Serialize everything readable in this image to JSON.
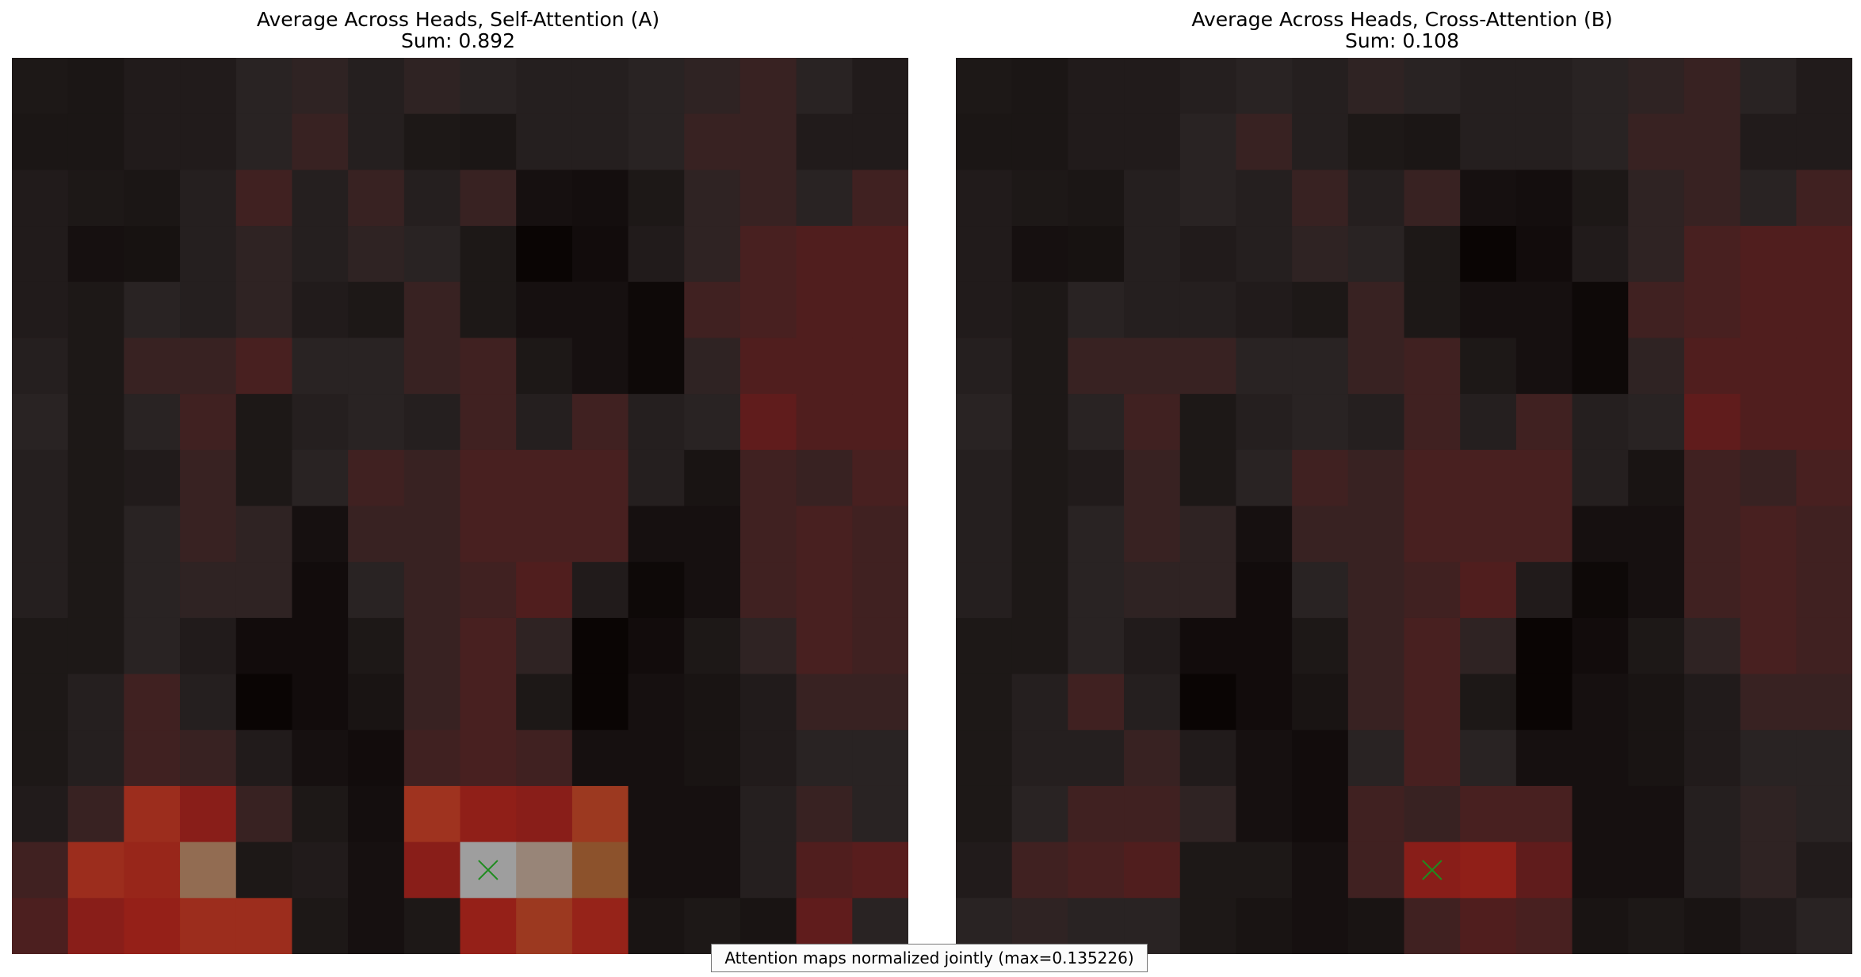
{
  "chart_data": [
    {
      "type": "heatmap",
      "title": "Average Across Heads, Self-Attention (A)",
      "subtitle": "Sum: 0.892",
      "rows": 16,
      "cols": 16,
      "values": [
        [
          0.1,
          0.09,
          0.12,
          0.12,
          0.16,
          0.18,
          0.14,
          0.18,
          0.16,
          0.14,
          0.14,
          0.16,
          0.18,
          0.2,
          0.16,
          0.12
        ],
        [
          0.09,
          0.09,
          0.12,
          0.12,
          0.16,
          0.2,
          0.14,
          0.1,
          0.09,
          0.14,
          0.14,
          0.16,
          0.2,
          0.2,
          0.12,
          0.12
        ],
        [
          0.12,
          0.1,
          0.09,
          0.14,
          0.22,
          0.14,
          0.2,
          0.14,
          0.2,
          0.06,
          0.05,
          0.1,
          0.18,
          0.2,
          0.16,
          0.22
        ],
        [
          0.12,
          0.06,
          0.07,
          0.14,
          0.18,
          0.14,
          0.18,
          0.16,
          0.1,
          0.0,
          0.04,
          0.12,
          0.18,
          0.24,
          0.26,
          0.26
        ],
        [
          0.12,
          0.1,
          0.16,
          0.14,
          0.18,
          0.12,
          0.1,
          0.2,
          0.1,
          0.06,
          0.06,
          0.02,
          0.22,
          0.24,
          0.26,
          0.26
        ],
        [
          0.14,
          0.1,
          0.2,
          0.2,
          0.24,
          0.16,
          0.16,
          0.2,
          0.22,
          0.1,
          0.06,
          0.02,
          0.18,
          0.26,
          0.26,
          0.26
        ],
        [
          0.16,
          0.1,
          0.16,
          0.22,
          0.1,
          0.14,
          0.16,
          0.14,
          0.22,
          0.14,
          0.22,
          0.14,
          0.16,
          0.3,
          0.26,
          0.26
        ],
        [
          0.14,
          0.1,
          0.12,
          0.2,
          0.1,
          0.16,
          0.22,
          0.2,
          0.24,
          0.24,
          0.24,
          0.14,
          0.08,
          0.22,
          0.2,
          0.24
        ],
        [
          0.14,
          0.1,
          0.16,
          0.2,
          0.18,
          0.06,
          0.2,
          0.2,
          0.24,
          0.24,
          0.24,
          0.06,
          0.06,
          0.22,
          0.24,
          0.22
        ],
        [
          0.14,
          0.1,
          0.16,
          0.18,
          0.18,
          0.04,
          0.16,
          0.2,
          0.22,
          0.26,
          0.12,
          0.02,
          0.06,
          0.22,
          0.24,
          0.22
        ],
        [
          0.1,
          0.1,
          0.16,
          0.12,
          0.04,
          0.04,
          0.1,
          0.2,
          0.24,
          0.18,
          0.0,
          0.04,
          0.1,
          0.18,
          0.24,
          0.22
        ],
        [
          0.1,
          0.14,
          0.22,
          0.14,
          0.0,
          0.04,
          0.08,
          0.2,
          0.24,
          0.1,
          0.0,
          0.06,
          0.08,
          0.12,
          0.2,
          0.2
        ],
        [
          0.1,
          0.14,
          0.22,
          0.2,
          0.12,
          0.06,
          0.04,
          0.22,
          0.24,
          0.22,
          0.06,
          0.06,
          0.08,
          0.12,
          0.16,
          0.16
        ],
        [
          0.12,
          0.2,
          0.6,
          0.45,
          0.2,
          0.1,
          0.05,
          0.65,
          0.48,
          0.45,
          0.7,
          0.06,
          0.06,
          0.14,
          0.2,
          0.16
        ],
        [
          0.22,
          0.6,
          0.55,
          0.9,
          0.1,
          0.12,
          0.06,
          0.45,
          1.0,
          0.95,
          0.85,
          0.06,
          0.06,
          0.14,
          0.26,
          0.28
        ],
        [
          0.25,
          0.45,
          0.5,
          0.6,
          0.6,
          0.1,
          0.06,
          0.1,
          0.5,
          0.7,
          0.52,
          0.08,
          0.1,
          0.08,
          0.3,
          0.16
        ]
      ],
      "marker": {
        "row": 14,
        "col": 8,
        "symbol": "x",
        "color": "#1f8c1f"
      },
      "colormap": [
        "#0a0504",
        "#2a2424",
        "#6e1a1a",
        "#952018",
        "#a03520",
        "#8a4a1f",
        "#9e9e9e"
      ]
    },
    {
      "type": "heatmap",
      "title": "Average Across Heads, Cross-Attention (B)",
      "subtitle": "Sum: 0.108",
      "rows": 16,
      "cols": 16,
      "values": [
        [
          0.1,
          0.09,
          0.12,
          0.12,
          0.14,
          0.16,
          0.14,
          0.18,
          0.16,
          0.14,
          0.14,
          0.16,
          0.18,
          0.2,
          0.16,
          0.12
        ],
        [
          0.09,
          0.09,
          0.12,
          0.12,
          0.16,
          0.2,
          0.14,
          0.1,
          0.09,
          0.14,
          0.14,
          0.16,
          0.2,
          0.2,
          0.12,
          0.12
        ],
        [
          0.12,
          0.1,
          0.09,
          0.14,
          0.16,
          0.14,
          0.2,
          0.14,
          0.2,
          0.06,
          0.05,
          0.1,
          0.18,
          0.2,
          0.16,
          0.22
        ],
        [
          0.12,
          0.06,
          0.07,
          0.14,
          0.12,
          0.14,
          0.18,
          0.16,
          0.1,
          0.0,
          0.04,
          0.12,
          0.18,
          0.24,
          0.26,
          0.26
        ],
        [
          0.12,
          0.1,
          0.16,
          0.14,
          0.14,
          0.12,
          0.1,
          0.2,
          0.1,
          0.06,
          0.06,
          0.02,
          0.22,
          0.24,
          0.26,
          0.26
        ],
        [
          0.14,
          0.1,
          0.2,
          0.2,
          0.2,
          0.16,
          0.16,
          0.2,
          0.22,
          0.1,
          0.06,
          0.02,
          0.18,
          0.26,
          0.26,
          0.26
        ],
        [
          0.16,
          0.1,
          0.16,
          0.22,
          0.1,
          0.14,
          0.16,
          0.14,
          0.22,
          0.14,
          0.22,
          0.14,
          0.16,
          0.3,
          0.26,
          0.26
        ],
        [
          0.14,
          0.1,
          0.12,
          0.2,
          0.1,
          0.16,
          0.22,
          0.2,
          0.24,
          0.24,
          0.24,
          0.14,
          0.08,
          0.22,
          0.2,
          0.24
        ],
        [
          0.14,
          0.1,
          0.16,
          0.2,
          0.18,
          0.06,
          0.2,
          0.2,
          0.24,
          0.24,
          0.24,
          0.06,
          0.06,
          0.22,
          0.24,
          0.22
        ],
        [
          0.14,
          0.1,
          0.16,
          0.18,
          0.18,
          0.04,
          0.16,
          0.2,
          0.22,
          0.26,
          0.12,
          0.02,
          0.06,
          0.22,
          0.24,
          0.22
        ],
        [
          0.1,
          0.1,
          0.16,
          0.12,
          0.04,
          0.04,
          0.1,
          0.2,
          0.24,
          0.18,
          0.0,
          0.04,
          0.1,
          0.18,
          0.24,
          0.22
        ],
        [
          0.1,
          0.14,
          0.22,
          0.14,
          0.0,
          0.04,
          0.08,
          0.2,
          0.24,
          0.1,
          0.0,
          0.06,
          0.08,
          0.12,
          0.2,
          0.2
        ],
        [
          0.1,
          0.14,
          0.14,
          0.2,
          0.12,
          0.06,
          0.04,
          0.16,
          0.24,
          0.16,
          0.06,
          0.06,
          0.08,
          0.12,
          0.16,
          0.16
        ],
        [
          0.1,
          0.16,
          0.22,
          0.22,
          0.18,
          0.06,
          0.04,
          0.22,
          0.2,
          0.24,
          0.24,
          0.06,
          0.06,
          0.14,
          0.18,
          0.16
        ],
        [
          0.12,
          0.22,
          0.24,
          0.26,
          0.1,
          0.1,
          0.06,
          0.22,
          0.45,
          0.48,
          0.3,
          0.06,
          0.06,
          0.14,
          0.18,
          0.12
        ],
        [
          0.16,
          0.18,
          0.16,
          0.16,
          0.1,
          0.08,
          0.06,
          0.08,
          0.22,
          0.26,
          0.24,
          0.08,
          0.1,
          0.08,
          0.12,
          0.16
        ]
      ],
      "marker": {
        "row": 14,
        "col": 8,
        "symbol": "x",
        "color": "#1f8c1f"
      },
      "colormap": [
        "#0a0504",
        "#2a2424",
        "#6e1a1a",
        "#952018",
        "#a03520",
        "#8a4a1f",
        "#9e9e9e"
      ]
    }
  ],
  "footnote": "Attention maps normalized jointly (max=0.135226)"
}
